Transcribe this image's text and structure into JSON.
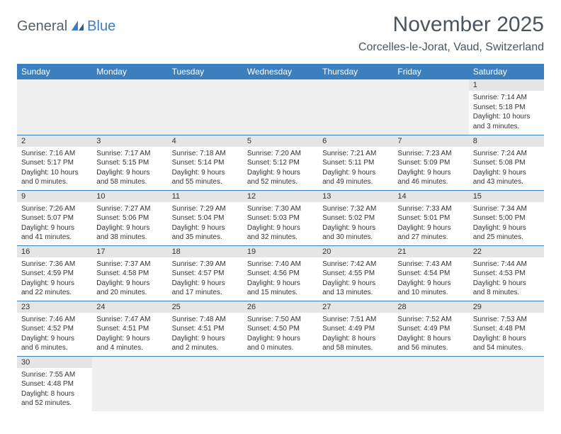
{
  "logo": {
    "part1": "General",
    "part2": "Blue"
  },
  "title": "November 2025",
  "location": "Corcelles-le-Jorat, Vaud, Switzerland",
  "colors": {
    "header_bg": "#3b7fbf",
    "header_text": "#ffffff",
    "daynum_bg": "#e5e5e5",
    "empty_bg": "#efefef",
    "border": "#3b7fbf",
    "title_color": "#4a555f",
    "logo_gray": "#55606a",
    "logo_blue": "#3b7fbf"
  },
  "fonts": {
    "title_pt": 30,
    "location_pt": 16,
    "th_pt": 12,
    "daynum_pt": 11,
    "cell_pt": 10
  },
  "weekdays": [
    "Sunday",
    "Monday",
    "Tuesday",
    "Wednesday",
    "Thursday",
    "Friday",
    "Saturday"
  ],
  "weeks": [
    [
      null,
      null,
      null,
      null,
      null,
      null,
      {
        "n": "1",
        "sr": "Sunrise: 7:14 AM",
        "ss": "Sunset: 5:18 PM",
        "d1": "Daylight: 10 hours",
        "d2": "and 3 minutes."
      }
    ],
    [
      {
        "n": "2",
        "sr": "Sunrise: 7:16 AM",
        "ss": "Sunset: 5:17 PM",
        "d1": "Daylight: 10 hours",
        "d2": "and 0 minutes."
      },
      {
        "n": "3",
        "sr": "Sunrise: 7:17 AM",
        "ss": "Sunset: 5:15 PM",
        "d1": "Daylight: 9 hours",
        "d2": "and 58 minutes."
      },
      {
        "n": "4",
        "sr": "Sunrise: 7:18 AM",
        "ss": "Sunset: 5:14 PM",
        "d1": "Daylight: 9 hours",
        "d2": "and 55 minutes."
      },
      {
        "n": "5",
        "sr": "Sunrise: 7:20 AM",
        "ss": "Sunset: 5:12 PM",
        "d1": "Daylight: 9 hours",
        "d2": "and 52 minutes."
      },
      {
        "n": "6",
        "sr": "Sunrise: 7:21 AM",
        "ss": "Sunset: 5:11 PM",
        "d1": "Daylight: 9 hours",
        "d2": "and 49 minutes."
      },
      {
        "n": "7",
        "sr": "Sunrise: 7:23 AM",
        "ss": "Sunset: 5:09 PM",
        "d1": "Daylight: 9 hours",
        "d2": "and 46 minutes."
      },
      {
        "n": "8",
        "sr": "Sunrise: 7:24 AM",
        "ss": "Sunset: 5:08 PM",
        "d1": "Daylight: 9 hours",
        "d2": "and 43 minutes."
      }
    ],
    [
      {
        "n": "9",
        "sr": "Sunrise: 7:26 AM",
        "ss": "Sunset: 5:07 PM",
        "d1": "Daylight: 9 hours",
        "d2": "and 41 minutes."
      },
      {
        "n": "10",
        "sr": "Sunrise: 7:27 AM",
        "ss": "Sunset: 5:06 PM",
        "d1": "Daylight: 9 hours",
        "d2": "and 38 minutes."
      },
      {
        "n": "11",
        "sr": "Sunrise: 7:29 AM",
        "ss": "Sunset: 5:04 PM",
        "d1": "Daylight: 9 hours",
        "d2": "and 35 minutes."
      },
      {
        "n": "12",
        "sr": "Sunrise: 7:30 AM",
        "ss": "Sunset: 5:03 PM",
        "d1": "Daylight: 9 hours",
        "d2": "and 32 minutes."
      },
      {
        "n": "13",
        "sr": "Sunrise: 7:32 AM",
        "ss": "Sunset: 5:02 PM",
        "d1": "Daylight: 9 hours",
        "d2": "and 30 minutes."
      },
      {
        "n": "14",
        "sr": "Sunrise: 7:33 AM",
        "ss": "Sunset: 5:01 PM",
        "d1": "Daylight: 9 hours",
        "d2": "and 27 minutes."
      },
      {
        "n": "15",
        "sr": "Sunrise: 7:34 AM",
        "ss": "Sunset: 5:00 PM",
        "d1": "Daylight: 9 hours",
        "d2": "and 25 minutes."
      }
    ],
    [
      {
        "n": "16",
        "sr": "Sunrise: 7:36 AM",
        "ss": "Sunset: 4:59 PM",
        "d1": "Daylight: 9 hours",
        "d2": "and 22 minutes."
      },
      {
        "n": "17",
        "sr": "Sunrise: 7:37 AM",
        "ss": "Sunset: 4:58 PM",
        "d1": "Daylight: 9 hours",
        "d2": "and 20 minutes."
      },
      {
        "n": "18",
        "sr": "Sunrise: 7:39 AM",
        "ss": "Sunset: 4:57 PM",
        "d1": "Daylight: 9 hours",
        "d2": "and 17 minutes."
      },
      {
        "n": "19",
        "sr": "Sunrise: 7:40 AM",
        "ss": "Sunset: 4:56 PM",
        "d1": "Daylight: 9 hours",
        "d2": "and 15 minutes."
      },
      {
        "n": "20",
        "sr": "Sunrise: 7:42 AM",
        "ss": "Sunset: 4:55 PM",
        "d1": "Daylight: 9 hours",
        "d2": "and 13 minutes."
      },
      {
        "n": "21",
        "sr": "Sunrise: 7:43 AM",
        "ss": "Sunset: 4:54 PM",
        "d1": "Daylight: 9 hours",
        "d2": "and 10 minutes."
      },
      {
        "n": "22",
        "sr": "Sunrise: 7:44 AM",
        "ss": "Sunset: 4:53 PM",
        "d1": "Daylight: 9 hours",
        "d2": "and 8 minutes."
      }
    ],
    [
      {
        "n": "23",
        "sr": "Sunrise: 7:46 AM",
        "ss": "Sunset: 4:52 PM",
        "d1": "Daylight: 9 hours",
        "d2": "and 6 minutes."
      },
      {
        "n": "24",
        "sr": "Sunrise: 7:47 AM",
        "ss": "Sunset: 4:51 PM",
        "d1": "Daylight: 9 hours",
        "d2": "and 4 minutes."
      },
      {
        "n": "25",
        "sr": "Sunrise: 7:48 AM",
        "ss": "Sunset: 4:51 PM",
        "d1": "Daylight: 9 hours",
        "d2": "and 2 minutes."
      },
      {
        "n": "26",
        "sr": "Sunrise: 7:50 AM",
        "ss": "Sunset: 4:50 PM",
        "d1": "Daylight: 9 hours",
        "d2": "and 0 minutes."
      },
      {
        "n": "27",
        "sr": "Sunrise: 7:51 AM",
        "ss": "Sunset: 4:49 PM",
        "d1": "Daylight: 8 hours",
        "d2": "and 58 minutes."
      },
      {
        "n": "28",
        "sr": "Sunrise: 7:52 AM",
        "ss": "Sunset: 4:49 PM",
        "d1": "Daylight: 8 hours",
        "d2": "and 56 minutes."
      },
      {
        "n": "29",
        "sr": "Sunrise: 7:53 AM",
        "ss": "Sunset: 4:48 PM",
        "d1": "Daylight: 8 hours",
        "d2": "and 54 minutes."
      }
    ],
    [
      {
        "n": "30",
        "sr": "Sunrise: 7:55 AM",
        "ss": "Sunset: 4:48 PM",
        "d1": "Daylight: 8 hours",
        "d2": "and 52 minutes."
      },
      null,
      null,
      null,
      null,
      null,
      null
    ]
  ]
}
